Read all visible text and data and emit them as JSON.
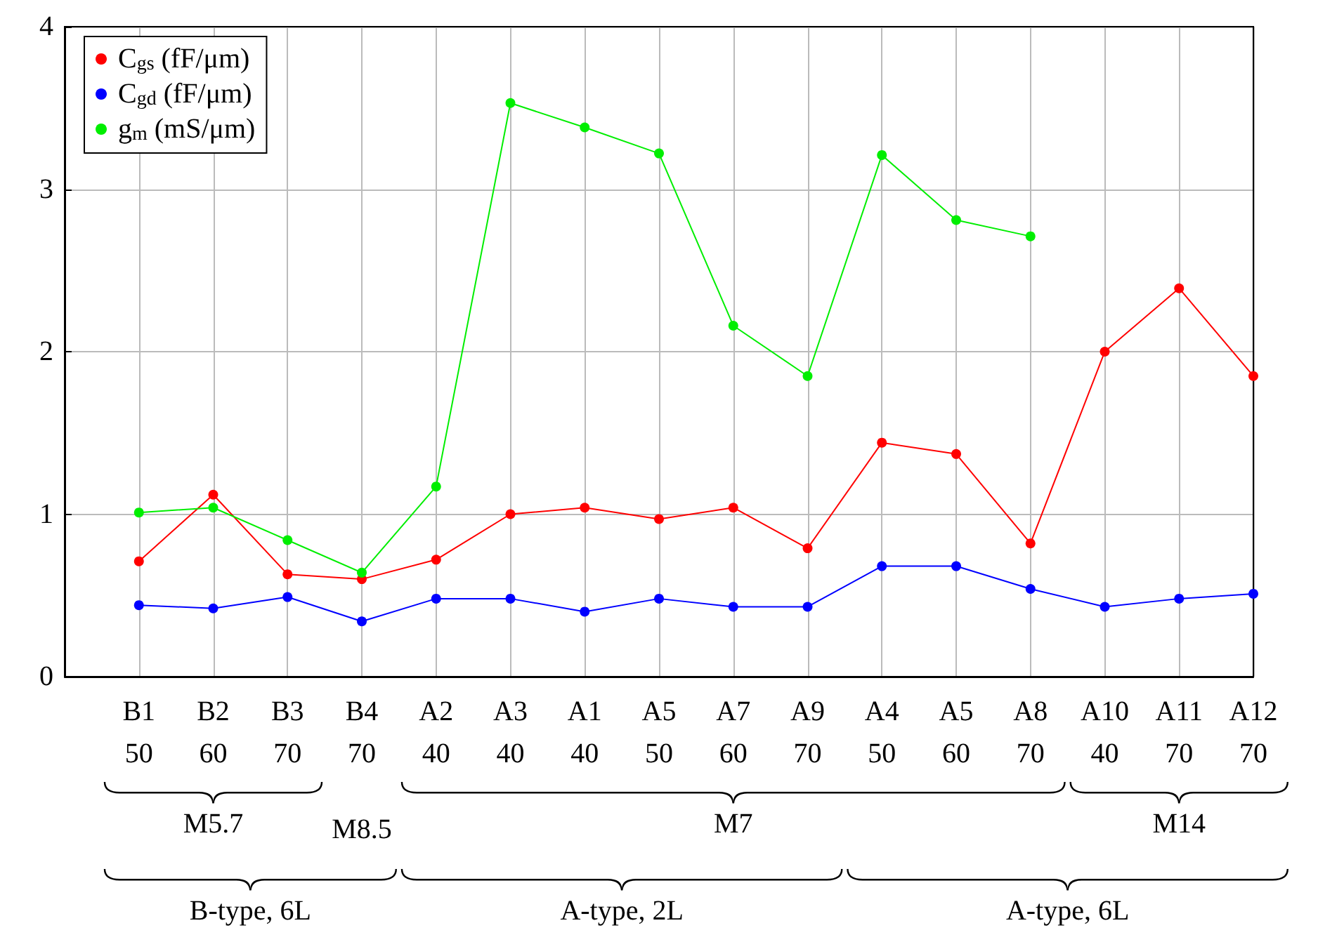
{
  "chart_data": {
    "type": "line",
    "categories": [
      null,
      "B1\n50",
      "B2\n60",
      "B3\n70",
      "B4\n70",
      "A2\n40",
      "A3\n40",
      "A1\n40",
      "A5\n50",
      "A7\n60",
      "A9\n70",
      "A4\n50",
      "A5\n60",
      "A8\n70",
      "A10\n40",
      "A11\n70",
      "A12\n70"
    ],
    "series": [
      {
        "name": "C$_{gs}$ (fF/μm)",
        "color": "#ff0000",
        "values": [
          null,
          0.71,
          1.12,
          0.63,
          0.6,
          0.72,
          1.0,
          1.04,
          0.97,
          1.04,
          0.79,
          1.44,
          1.37,
          0.82,
          2.0,
          2.39,
          1.85
        ]
      },
      {
        "name": "C$_{gd}$ (fF/μm)",
        "color": "#0000ff",
        "values": [
          null,
          0.44,
          0.42,
          0.49,
          0.34,
          0.48,
          0.48,
          0.4,
          0.48,
          0.43,
          0.43,
          0.68,
          0.68,
          0.54,
          0.43,
          0.48,
          0.51
        ]
      },
      {
        "name": "g$_{m}$ (mS/μm)",
        "color": "#00ee00",
        "values": [
          null,
          1.01,
          1.04,
          0.84,
          0.64,
          1.17,
          3.53,
          3.38,
          3.22,
          2.16,
          1.85,
          3.21,
          2.81,
          2.71,
          null,
          null,
          null
        ]
      }
    ],
    "ylim": [
      0,
      4
    ],
    "yticks": [
      0,
      1,
      2,
      3,
      4
    ],
    "grid": true,
    "legend": "top left",
    "marker": "circle",
    "line_style": "solid",
    "annotations": [
      "M5.7",
      "M8.5",
      "M7",
      "M14",
      "B-type, 6L",
      "A-type, 2L",
      "A-type, 6L"
    ]
  }
}
